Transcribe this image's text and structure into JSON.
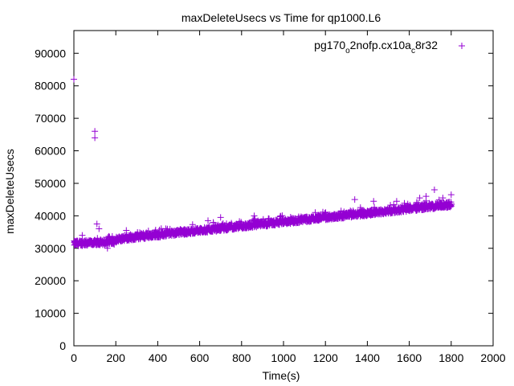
{
  "chart_data": {
    "type": "scatter",
    "title": "maxDeleteUsecs vs Time for qp1000.L6",
    "xlabel": "Time(s)",
    "ylabel": "maxDeleteUsecs",
    "xlim": [
      0,
      2000
    ],
    "ylim": [
      0,
      97000
    ],
    "xticks": [
      0,
      200,
      400,
      600,
      800,
      1000,
      1200,
      1400,
      1600,
      1800,
      2000
    ],
    "yticks": [
      0,
      10000,
      20000,
      30000,
      40000,
      50000,
      60000,
      70000,
      80000,
      90000
    ],
    "grid": false,
    "legend_position": "top-right",
    "marker": "+",
    "series": [
      {
        "name_parts": {
          "p1": "pg170",
          "s1": "o",
          "p2": "2nofp.cx10a",
          "s2": "c",
          "p3": "8r32"
        },
        "color": "#9400d3",
        "trend": {
          "x_start": 0,
          "x_end": 1800,
          "y_start": 31500,
          "y_end": 43500
        },
        "outliers": [
          [
            0,
            82000
          ],
          [
            100,
            66000
          ],
          [
            100,
            64000
          ],
          [
            110,
            37500
          ],
          [
            120,
            36000
          ],
          [
            40,
            34000
          ],
          [
            250,
            35500
          ],
          [
            640,
            38500
          ],
          [
            700,
            39500
          ],
          [
            860,
            40000
          ],
          [
            1340,
            45000
          ],
          [
            1430,
            44500
          ],
          [
            1540,
            44500
          ],
          [
            1650,
            45500
          ],
          [
            1680,
            46000
          ],
          [
            1720,
            48000
          ],
          [
            1760,
            45500
          ],
          [
            1800,
            46500
          ],
          [
            160,
            30000
          ],
          [
            170,
            33500
          ]
        ]
      }
    ]
  },
  "ytick_labels": [
    "0",
    "10000",
    "20000",
    "30000",
    "40000",
    "50000",
    "60000",
    "70000",
    "80000",
    "90000"
  ],
  "xtick_labels": [
    "0",
    "200",
    "400",
    "600",
    "800",
    "1000",
    "1200",
    "1400",
    "1600",
    "1800",
    "2000"
  ]
}
